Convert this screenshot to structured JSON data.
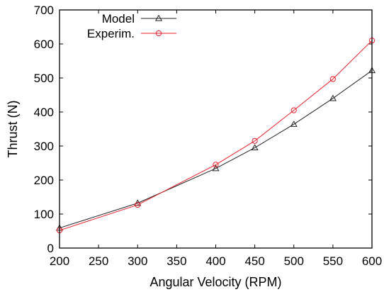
{
  "chart_data": {
    "type": "line",
    "title": "",
    "xlabel": "Angular Velocity (RPM)",
    "ylabel": "Thrust (N)",
    "xlim": [
      200,
      600
    ],
    "ylim": [
      0,
      700
    ],
    "xticks": [
      200,
      250,
      300,
      350,
      400,
      450,
      500,
      550,
      600
    ],
    "yticks": [
      0,
      100,
      200,
      300,
      400,
      500,
      600,
      700
    ],
    "grid": false,
    "legend_position": "top-left",
    "series": [
      {
        "name": "Model",
        "color": "#222222",
        "marker": "triangle",
        "x": [
          200,
          300,
          400,
          450,
          500,
          550,
          600
        ],
        "y": [
          59,
          132,
          234,
          295,
          364,
          440,
          522
        ]
      },
      {
        "name": "Experim.",
        "color": "#e8202a",
        "marker": "circle",
        "x": [
          200,
          300,
          400,
          450,
          500,
          550,
          600
        ],
        "y": [
          52,
          127,
          245,
          315,
          405,
          497,
          610
        ]
      }
    ]
  }
}
